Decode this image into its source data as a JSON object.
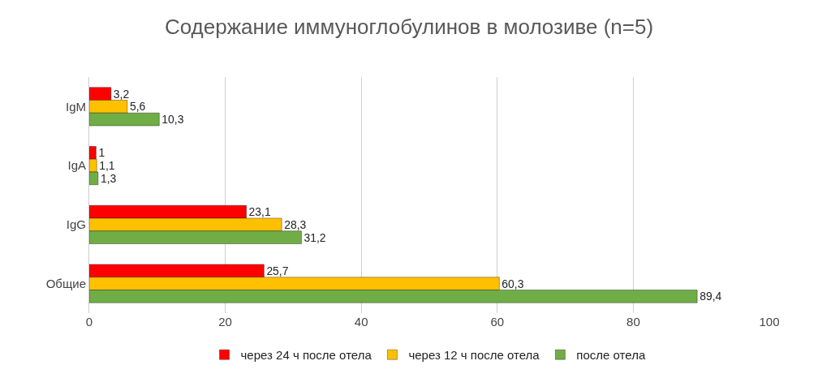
{
  "chart_data": {
    "type": "bar",
    "orientation": "horizontal",
    "title": "Содержание иммуноглобулинов в молозиве (n=5)",
    "categories": [
      "IgM",
      "IgA",
      "IgG",
      "Общие"
    ],
    "series": [
      {
        "name": "через 24 ч после отела",
        "color": "#ff0000",
        "values": [
          3.2,
          1,
          23.1,
          25.7
        ],
        "value_labels": [
          "3,2",
          "1",
          "23,1",
          "25,7"
        ]
      },
      {
        "name": "через 12 ч после отела",
        "color": "#ffc000",
        "values": [
          5.6,
          1.1,
          28.3,
          60.3
        ],
        "value_labels": [
          "5,6",
          "1,1",
          "28,3",
          "60,3"
        ]
      },
      {
        "name": "после отела",
        "color": "#70ad47",
        "values": [
          10.3,
          1.3,
          31.2,
          89.4
        ],
        "value_labels": [
          "10,3",
          "1,3",
          "31,2",
          "89,4"
        ]
      }
    ],
    "xlim": [
      0,
      100
    ],
    "xticks": [
      0,
      20,
      40,
      60,
      80,
      100
    ],
    "grid": "x",
    "legend": "bottom"
  }
}
